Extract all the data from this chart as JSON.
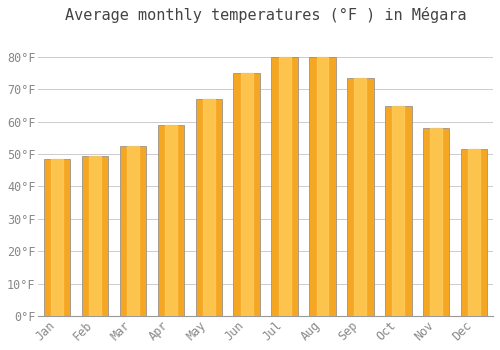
{
  "title": "Average monthly temperatures (°F ) in Mégara",
  "months": [
    "Jan",
    "Feb",
    "Mar",
    "Apr",
    "May",
    "Jun",
    "Jul",
    "Aug",
    "Sep",
    "Oct",
    "Nov",
    "Dec"
  ],
  "values": [
    48.5,
    49.5,
    52.5,
    59.0,
    67.0,
    75.0,
    80.0,
    80.0,
    73.5,
    65.0,
    58.0,
    51.5
  ],
  "bar_color_main": "#F5A623",
  "bar_color_light": "#FFD060",
  "bar_color_dark": "#E08C00",
  "bar_border_color": "#888888",
  "background_color": "#FFFFFF",
  "grid_color": "#CCCCCC",
  "ylim": [
    0,
    88
  ],
  "yticks": [
    0,
    10,
    20,
    30,
    40,
    50,
    60,
    70,
    80
  ],
  "ytick_labels": [
    "0°F",
    "10°F",
    "20°F",
    "30°F",
    "40°F",
    "50°F",
    "60°F",
    "70°F",
    "80°F"
  ],
  "title_fontsize": 11,
  "tick_fontsize": 8.5,
  "title_color": "#444444",
  "tick_color": "#888888",
  "font_family": "monospace"
}
